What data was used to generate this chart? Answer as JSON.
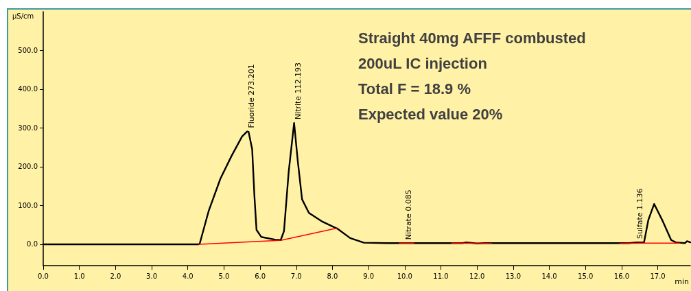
{
  "chart_data": {
    "type": "line",
    "ylabel": "µS/cm",
    "xlabel": "min",
    "annotations": [
      {
        "text": "Fluoride 273.201",
        "x": 5.64,
        "y": 291
      },
      {
        "text": "Nitrite 112.193",
        "x": 6.94,
        "y": 313
      },
      {
        "text": "Nitrate 0.085",
        "x": 10.0,
        "y": 3
      },
      {
        "text": "Sulfate 1.136",
        "x": 16.4,
        "y": 5
      },
      "Straight 40mg AFFF combusted",
      "200uL IC injection",
      "Total F = 18.9 %",
      "Expected value 20%"
    ],
    "series": [
      {
        "color": "#000000",
        "x": [
          0,
          4.3,
          4.33,
          4.58,
          4.9,
          5.21,
          5.5,
          5.64,
          5.68,
          5.78,
          5.84,
          5.9,
          6.03,
          6.41,
          6.57,
          6.66,
          6.79,
          6.94,
          7.04,
          7.16,
          7.35,
          7.73,
          8.14,
          8.49,
          8.87,
          9.5,
          11.6,
          11.7,
          12.0,
          12.2,
          16.2,
          16.4,
          16.62,
          16.74,
          16.9,
          17.12,
          17.37,
          17.5,
          17.75,
          17.81,
          17.9
        ],
        "values": [
          0,
          0,
          2,
          87,
          169,
          228,
          278,
          291,
          290,
          245,
          128,
          37,
          19,
          12,
          11,
          34,
          187,
          313,
          216,
          116,
          81,
          58,
          40,
          16,
          4,
          3,
          3,
          5,
          2,
          3,
          3,
          5,
          5,
          63,
          104,
          63,
          11,
          5,
          3,
          8,
          5
        ]
      },
      {
        "color": "#ff0000",
        "x": [
          4.3,
          6.53,
          null,
          6.57,
          8.14,
          null,
          9.85,
          10.25,
          null,
          11.3,
          12.4,
          null,
          15.95,
          16.55,
          null,
          16.55,
          17.6
        ],
        "values": [
          0,
          10,
          null,
          10,
          42,
          null,
          3,
          3,
          null,
          3,
          2,
          null,
          2,
          3,
          null,
          3,
          3
        ]
      }
    ],
    "xlim": [
      0,
      17.9
    ],
    "xticks": [
      {
        "value": 0,
        "label": "0.0"
      },
      {
        "value": 1,
        "label": "1.0"
      },
      {
        "value": 2,
        "label": "2.0"
      },
      {
        "value": 3,
        "label": "3.0"
      },
      {
        "value": 4,
        "label": "4.0"
      },
      {
        "value": 5,
        "label": "5.0"
      },
      {
        "value": 6,
        "label": "6.0"
      },
      {
        "value": 7,
        "label": "7.0"
      },
      {
        "value": 8,
        "label": "8.0"
      },
      {
        "value": 9,
        "label": "9.0"
      },
      {
        "value": 10,
        "label": "10.0"
      },
      {
        "value": 11,
        "label": "11.0"
      },
      {
        "value": 12,
        "label": "12.0"
      },
      {
        "value": 13,
        "label": "13.0"
      },
      {
        "value": 14,
        "label": "14.0"
      },
      {
        "value": 15,
        "label": "15.0"
      },
      {
        "value": 16,
        "label": "16.0"
      },
      {
        "value": 17,
        "label": "17.0"
      }
    ],
    "ylim": [
      -55,
      600
    ],
    "yticks": [
      {
        "value": 0,
        "label": "0.0"
      },
      {
        "value": 100,
        "label": "100.0"
      },
      {
        "value": 200,
        "label": "200.0"
      },
      {
        "value": 300,
        "label": "300.0"
      },
      {
        "value": 400,
        "label": "400.0"
      },
      {
        "value": 500,
        "label": "500.0"
      }
    ],
    "grid": false,
    "marker": "none",
    "line_style": "solid"
  }
}
